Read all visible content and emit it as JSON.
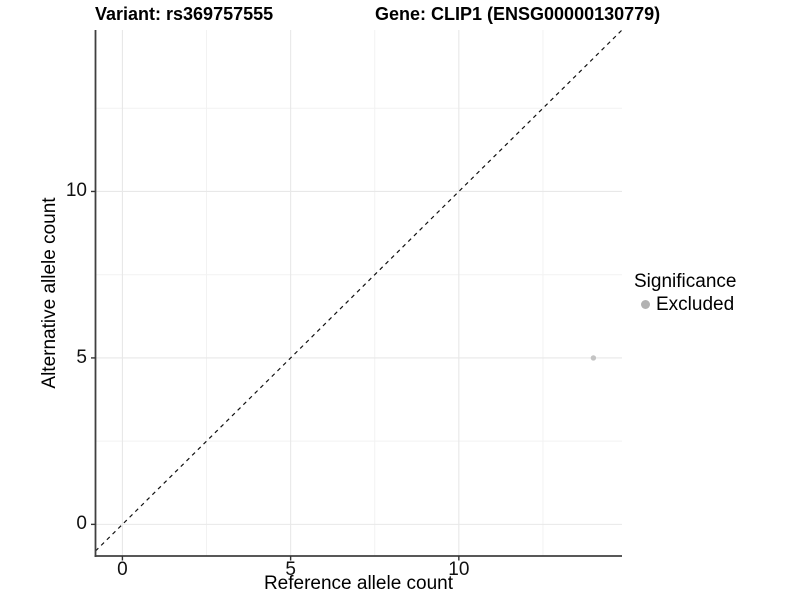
{
  "chart_data": {
    "type": "scatter",
    "titles": {
      "left": "Variant: rs369757555",
      "right": "Gene: CLIP1 (ENSG00000130779)"
    },
    "xlabel": "Reference allele count",
    "ylabel": "Alternative allele count",
    "xlim": [
      -0.8,
      14.85
    ],
    "ylim": [
      -0.95,
      14.85
    ],
    "x_ticks": [
      0,
      5,
      10
    ],
    "y_ticks": [
      0,
      5,
      10
    ],
    "x_minor_ticks": [
      2.5,
      7.5,
      12.5
    ],
    "y_minor_ticks": [
      2.5,
      7.5,
      12.5
    ],
    "grid": true,
    "points": [
      {
        "x": 14,
        "y": 5,
        "series": "Excluded"
      }
    ],
    "reference_line": {
      "kind": "identity",
      "slope": 1,
      "intercept": 0,
      "style": "dashed"
    },
    "legend": {
      "title": "Significance",
      "position": "right",
      "items": [
        {
          "label": "Excluded",
          "color": "#b2b2b2"
        }
      ]
    },
    "colors": {
      "point": "#c4c4c4",
      "legend_dot": "#b2b2b2",
      "grid_major": "#e8e8e8",
      "grid_minor": "#f2f2f2",
      "axis_line": "#404040",
      "tick_mark": "#333333",
      "dashed_line": "#111111",
      "background": "#ffffff"
    }
  }
}
